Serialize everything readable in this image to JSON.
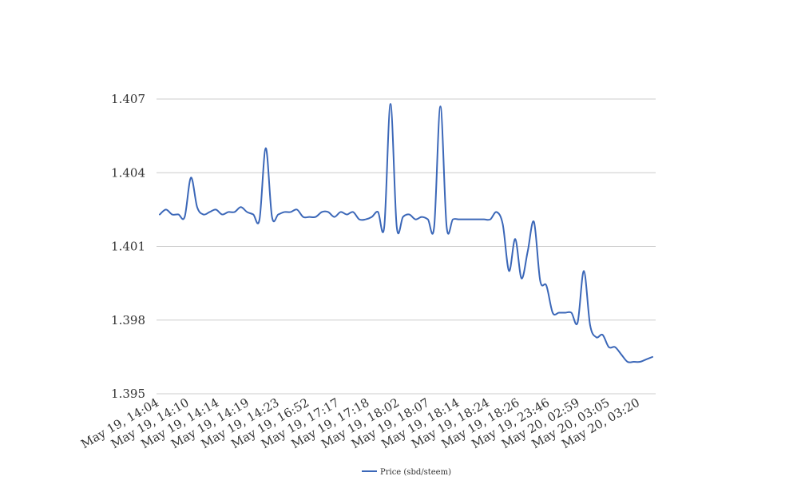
{
  "chart_data": {
    "type": "line",
    "title": "",
    "xlabel": "",
    "ylabel": "",
    "ylim": [
      1.395,
      1.407
    ],
    "yticks": [
      "1.395",
      "1.398",
      "1.401",
      "1.404",
      "1.407"
    ],
    "grid": true,
    "legend_position": "bottom",
    "line_color": "#3b67b8",
    "grid_color": "#cccccc",
    "x_tick_labels": [
      "May 19, 14:04",
      "May 19, 14:10",
      "May 19, 14:14",
      "May 19, 14:19",
      "May 19, 14:23",
      "May 19, 16:52",
      "May 19, 17:17",
      "May 19, 17:18",
      "May 19, 18:02",
      "May 19, 18:07",
      "May 19, 18:14",
      "May 19, 18:24",
      "May 19, 18:26",
      "May 19, 23:46",
      "May 20, 02:59",
      "May 20, 03:05",
      "May 20, 03:20"
    ],
    "series": [
      {
        "name": "Price (sbd/steem)",
        "values": [
          1.4023,
          1.4025,
          1.4023,
          1.4023,
          1.4022,
          1.4038,
          1.4026,
          1.4023,
          1.4024,
          1.4025,
          1.4023,
          1.4024,
          1.4024,
          1.4026,
          1.4024,
          1.4023,
          1.4021,
          1.405,
          1.4022,
          1.4023,
          1.4024,
          1.4024,
          1.4025,
          1.4022,
          1.4022,
          1.4022,
          1.4024,
          1.4024,
          1.4022,
          1.4024,
          1.4023,
          1.4024,
          1.4021,
          1.4021,
          1.4022,
          1.4024,
          1.4018,
          1.4068,
          1.4018,
          1.4022,
          1.4023,
          1.4021,
          1.4022,
          1.4021,
          1.4018,
          1.4067,
          1.4018,
          1.4021,
          1.4021,
          1.4021,
          1.4021,
          1.4021,
          1.4021,
          1.4021,
          1.4024,
          1.4019,
          1.4,
          1.4013,
          1.3997,
          1.4008,
          1.402,
          1.3996,
          1.3994,
          1.3983,
          1.3983,
          1.3983,
          1.3983,
          1.3979,
          1.4,
          1.3978,
          1.3973,
          1.3974,
          1.3969,
          1.3969,
          1.3966,
          1.3963,
          1.3963,
          1.3963,
          1.3964,
          1.3965
        ]
      }
    ]
  }
}
